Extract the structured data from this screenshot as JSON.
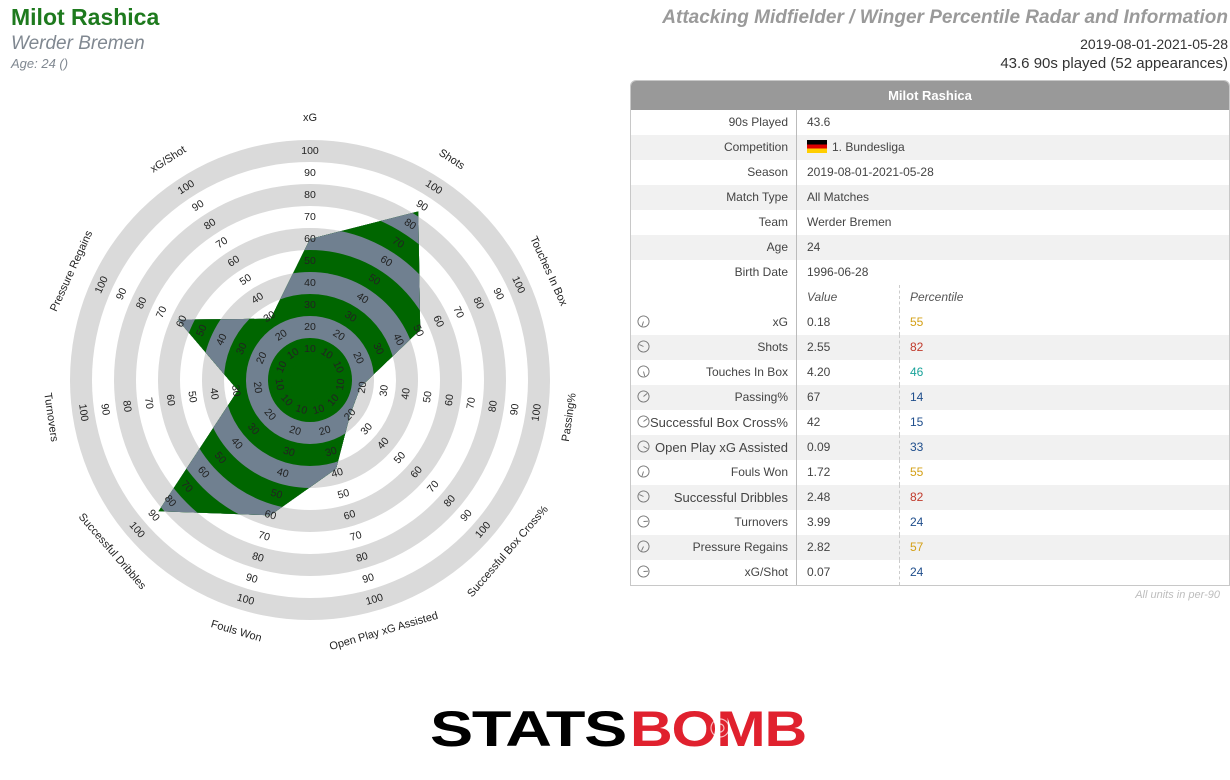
{
  "header": {
    "player_name": "Milot Rashica",
    "team": "Werder Bremen",
    "age_line": "Age: 24 ()",
    "radar_title": "Attacking Midfielder / Winger Percentile Radar and Information",
    "date_range": "2019-08-01-2021-05-28",
    "played_line": "43.6 90s played (52 appearances)"
  },
  "colors": {
    "accent_green": "#006600",
    "slate": "#708090",
    "ring_grey": "#dadada",
    "pct_high": "#c0392b",
    "pct_mid": "#d4a017",
    "pct_teal": "#1aa39a",
    "pct_low": "#1f4e8c"
  },
  "table": {
    "title": "Milot Rashica",
    "info_rows": [
      {
        "label": "90s Played",
        "value": "43.6"
      },
      {
        "label": "Competition",
        "value": "1. Bundesliga",
        "flag": "germany"
      },
      {
        "label": "Season",
        "value": "2019-08-01-2021-05-28"
      },
      {
        "label": "Match Type",
        "value": "All Matches"
      },
      {
        "label": "Team",
        "value": "Werder Bremen"
      },
      {
        "label": "Age",
        "value": "24"
      },
      {
        "label": "Birth Date",
        "value": "1996-06-28"
      }
    ],
    "value_header": "Value",
    "percentile_header": "Percentile",
    "metric_rows": [
      {
        "label": "xG",
        "value": "0.18",
        "percentile": "55"
      },
      {
        "label": "Shots",
        "value": "2.55",
        "percentile": "82"
      },
      {
        "label": "Touches In Box",
        "value": "4.20",
        "percentile": "46"
      },
      {
        "label": "Passing%",
        "value": "67",
        "percentile": "14"
      },
      {
        "label": "Successful Box Cross%",
        "value": "42",
        "percentile": "15"
      },
      {
        "label": "Open Play xG Assisted",
        "value": "0.09",
        "percentile": "33"
      },
      {
        "label": "Fouls Won",
        "value": "1.72",
        "percentile": "55"
      },
      {
        "label": "Successful Dribbles",
        "value": "2.48",
        "percentile": "82"
      },
      {
        "label": "Turnovers",
        "value": "3.99",
        "percentile": "24"
      },
      {
        "label": "Pressure Regains",
        "value": "2.82",
        "percentile": "57"
      },
      {
        "label": "xG/Shot",
        "value": "0.07",
        "percentile": "24"
      }
    ],
    "units_note": "All units in per-90"
  },
  "chart_data": {
    "type": "radar",
    "axes": [
      "xG",
      "Shots",
      "Touches In Box",
      "Passing%",
      "Successful Box Cross%",
      "Open Play xG Assisted",
      "Fouls Won",
      "Successful Dribbles",
      "Turnovers",
      "Pressure Regains",
      "xG/Shot"
    ],
    "series": [
      {
        "values": [
          55,
          82,
          46,
          14,
          15,
          33,
          55,
          82,
          24,
          57,
          24
        ]
      }
    ],
    "ticks": [
      "10",
      "20",
      "30",
      "40",
      "50",
      "60",
      "70",
      "80",
      "90",
      "100"
    ],
    "range": [
      0,
      100
    ],
    "grid": true
  },
  "logo": {
    "text_left": "STATS",
    "text_right": "BOMB",
    "right_color": "#e0212e"
  }
}
